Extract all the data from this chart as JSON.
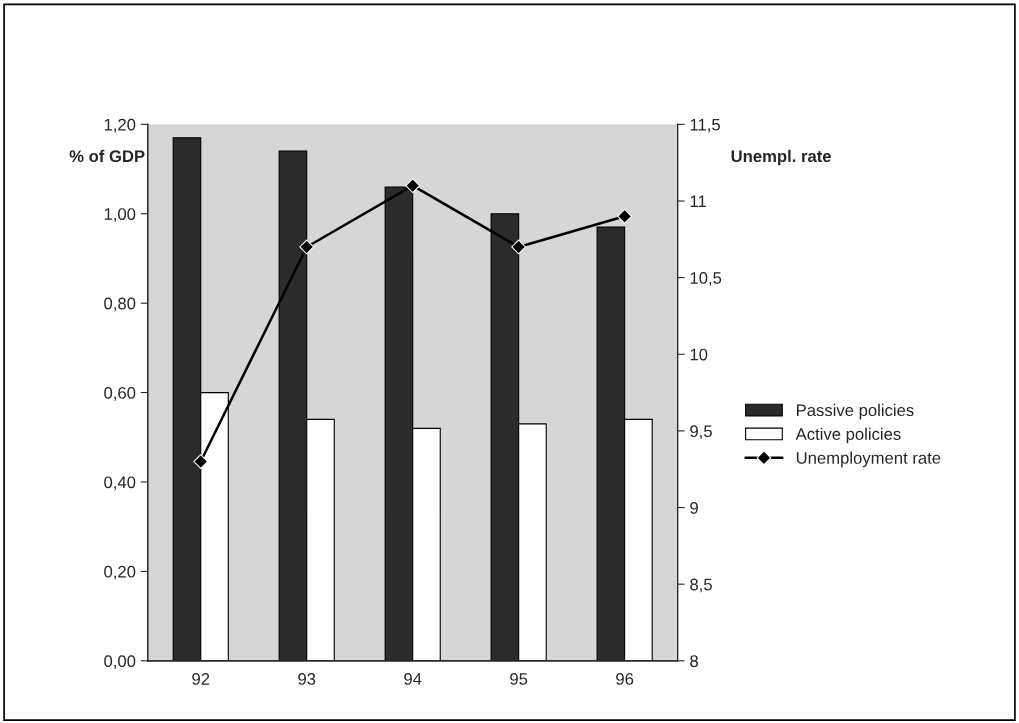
{
  "chart_data": {
    "type": "bar",
    "categories": [
      "92",
      "93",
      "94",
      "95",
      "96"
    ],
    "ylabel": "% of GDP",
    "y2label": "Unempl. rate",
    "series": [
      {
        "name": "Passive policies",
        "color": "#2b2b2b",
        "values": [
          1.17,
          1.14,
          1.06,
          1.0,
          0.97
        ]
      },
      {
        "name": "Active policies",
        "color": "#ffffff",
        "values": [
          0.6,
          0.54,
          0.52,
          0.53,
          0.54
        ]
      },
      {
        "name": "Unemployment rate",
        "type": "line",
        "axis": "y2",
        "color": "#000000",
        "marker": "diamond",
        "values": [
          9.3,
          10.7,
          11.1,
          10.7,
          10.9
        ]
      }
    ],
    "ylim": [
      0,
      1.2
    ],
    "yticks": [
      {
        "value": 0,
        "label": "0,00"
      },
      {
        "value": 0.2,
        "label": "0,20"
      },
      {
        "value": 0.4,
        "label": "0,40"
      },
      {
        "value": 0.6,
        "label": "0,60"
      },
      {
        "value": 0.8,
        "label": "0,80"
      },
      {
        "value": 1.0,
        "label": "1,00"
      },
      {
        "value": 1.2,
        "label": "1,20"
      }
    ],
    "y2lim": [
      8,
      11.5
    ],
    "y2ticks": [
      8,
      {
        "value": 8.5,
        "label": "8,5"
      },
      9,
      {
        "value": 9.5,
        "label": "9,5"
      },
      10,
      {
        "value": 10.5,
        "label": "10,5"
      },
      11,
      {
        "value": 11.5,
        "label": "11,5"
      }
    ],
    "legend": "right",
    "grid": false
  }
}
